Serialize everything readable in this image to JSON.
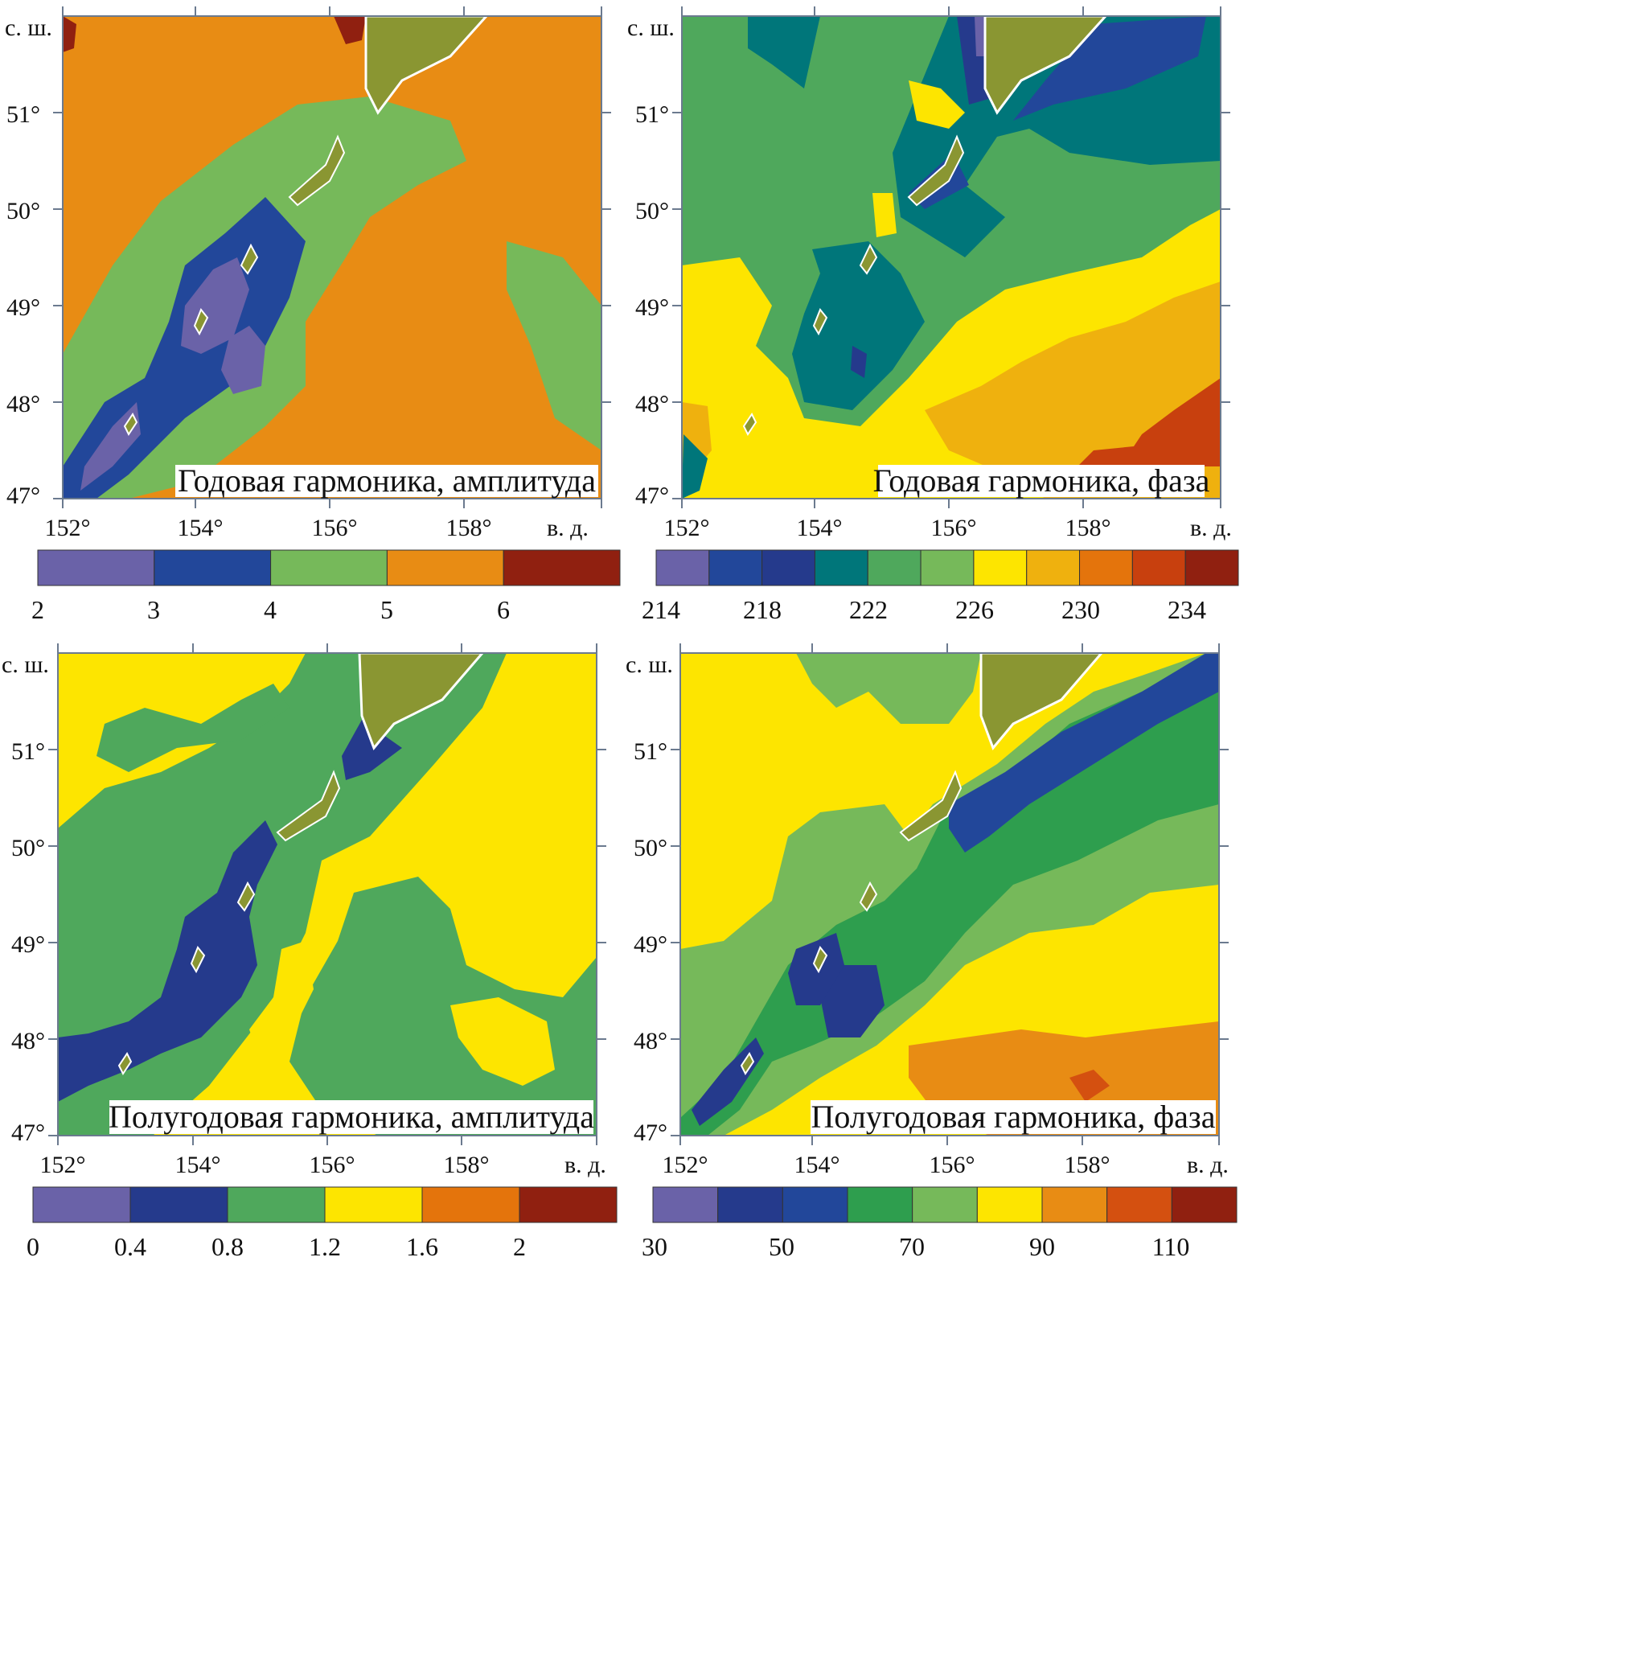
{
  "axes": {
    "lat_label": "с. ш.",
    "lon_label": "в. д.",
    "lat_ticks": [
      "51°",
      "50°",
      "49°",
      "48°",
      "47°"
    ],
    "lon_ticks": [
      "152°",
      "154°",
      "156°",
      "158°"
    ]
  },
  "panels": [
    {
      "title": "Годовая гармоника, амплитуда",
      "colorbar": {
        "colors": [
          "#6a62a8",
          "#22479a",
          "#76b95a",
          "#e88c14",
          "#902010"
        ],
        "tick_labels": [
          "2",
          "3",
          "4",
          "5",
          "6"
        ]
      }
    },
    {
      "title": "Годовая гармоника, фаза",
      "colors_note": "",
      "colorbar": {
        "colors": [
          "#6a62a8",
          "#22479a",
          "#253a8c",
          "#00767a",
          "#4fa85c",
          "#76b95a",
          "#fde500",
          "#efb10e",
          "#e4740c",
          "#c8400e",
          "#902010"
        ],
        "tick_labels": [
          "214",
          "218",
          "222",
          "226",
          "230",
          "234"
        ]
      }
    },
    {
      "title": "Полугодовая гармоника, амплитуда",
      "colorbar": {
        "colors": [
          "#6a62a8",
          "#253a8c",
          "#4fa85c",
          "#fde500",
          "#e4740c",
          "#902010"
        ],
        "tick_labels": [
          "0",
          "0.4",
          "0.8",
          "1.2",
          "1.6",
          "2"
        ]
      }
    },
    {
      "title": "Полугодовая гармоника, фаза",
      "colorbar": {
        "colors": [
          "#6a62a8",
          "#253a8c",
          "#22479a",
          "#2e9e4e",
          "#76b95a",
          "#fde500",
          "#e88c14",
          "#d45010",
          "#902010"
        ],
        "tick_labels": [
          "30",
          "50",
          "70",
          "90",
          "110"
        ]
      }
    }
  ]
}
